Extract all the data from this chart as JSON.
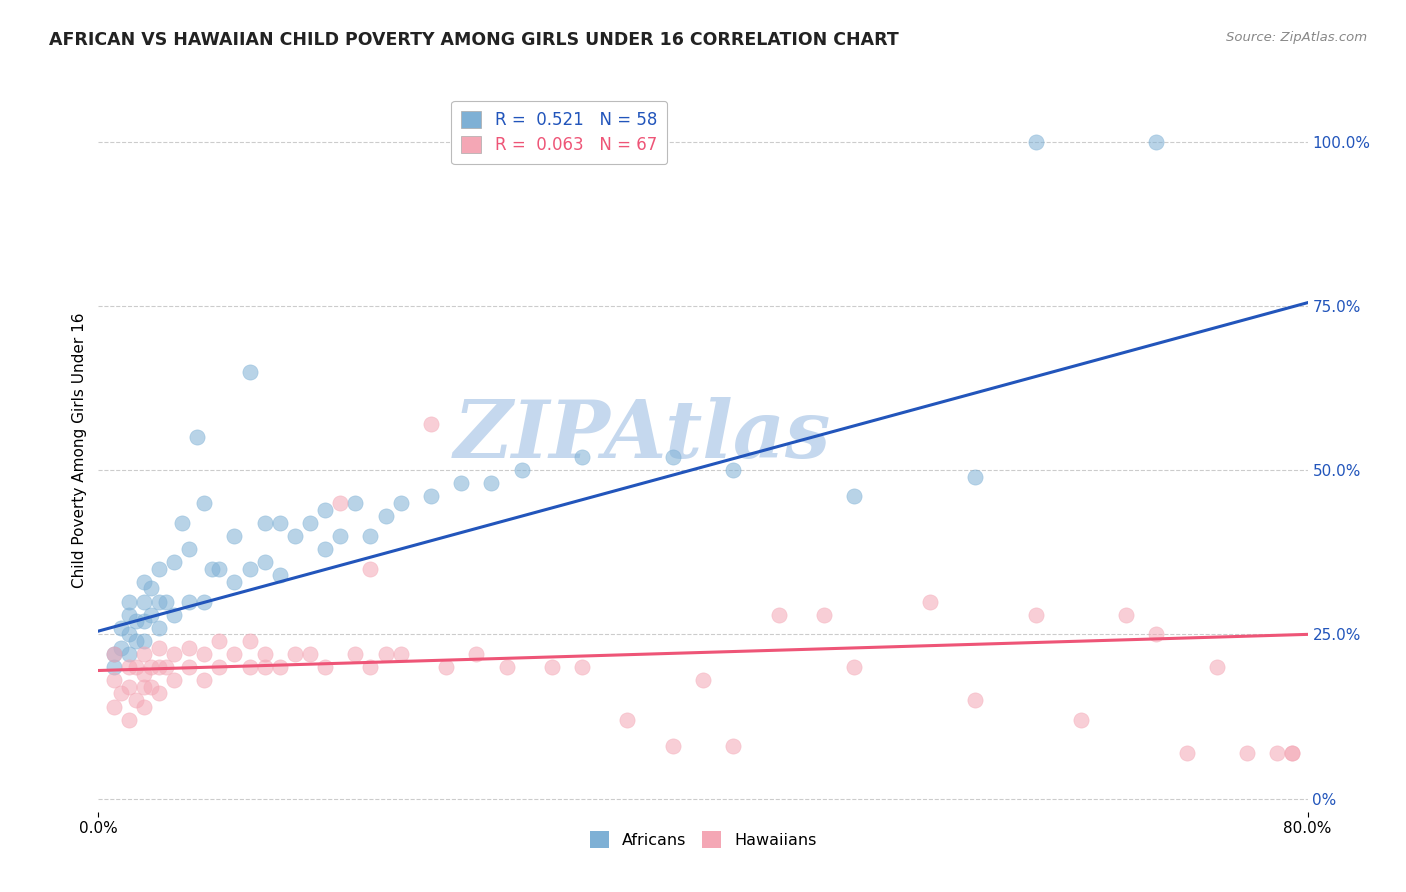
{
  "title": "AFRICAN VS HAWAIIAN CHILD POVERTY AMONG GIRLS UNDER 16 CORRELATION CHART",
  "source": "Source: ZipAtlas.com",
  "ylabel": "Child Poverty Among Girls Under 16",
  "xlim": [
    0.0,
    0.8
  ],
  "ylim": [
    -0.02,
    1.08
  ],
  "yticks_right": [
    0.0,
    0.25,
    0.5,
    0.75,
    1.0
  ],
  "ytick_labels_right": [
    "0%",
    "25.0%",
    "50.0%",
    "75.0%",
    "100.0%"
  ],
  "african_R": 0.521,
  "african_N": 58,
  "hawaiian_R": 0.063,
  "hawaiian_N": 67,
  "blue_color": "#7EB0D5",
  "pink_color": "#F4A7B5",
  "blue_line_color": "#2255BB",
  "pink_line_color": "#EE5577",
  "watermark": "ZIPAtlas",
  "watermark_color": "#C5D8EE",
  "background_color": "#FFFFFF",
  "grid_color": "#CCCCCC",
  "african_line_x0": 0.0,
  "african_line_y0": 0.255,
  "african_line_x1": 0.8,
  "african_line_y1": 0.755,
  "hawaiian_line_x0": 0.0,
  "hawaiian_line_y0": 0.195,
  "hawaiian_line_x1": 0.8,
  "hawaiian_line_y1": 0.25,
  "african_x": [
    0.01,
    0.01,
    0.015,
    0.015,
    0.02,
    0.02,
    0.02,
    0.02,
    0.025,
    0.025,
    0.03,
    0.03,
    0.03,
    0.03,
    0.035,
    0.035,
    0.04,
    0.04,
    0.04,
    0.045,
    0.05,
    0.05,
    0.055,
    0.06,
    0.06,
    0.065,
    0.07,
    0.07,
    0.075,
    0.08,
    0.09,
    0.09,
    0.1,
    0.1,
    0.11,
    0.11,
    0.12,
    0.12,
    0.13,
    0.14,
    0.15,
    0.15,
    0.16,
    0.17,
    0.18,
    0.19,
    0.2,
    0.22,
    0.24,
    0.26,
    0.28,
    0.32,
    0.38,
    0.42,
    0.5,
    0.58,
    0.62,
    0.7
  ],
  "african_y": [
    0.2,
    0.22,
    0.23,
    0.26,
    0.22,
    0.25,
    0.28,
    0.3,
    0.24,
    0.27,
    0.24,
    0.27,
    0.3,
    0.33,
    0.28,
    0.32,
    0.26,
    0.3,
    0.35,
    0.3,
    0.28,
    0.36,
    0.42,
    0.3,
    0.38,
    0.55,
    0.3,
    0.45,
    0.35,
    0.35,
    0.33,
    0.4,
    0.35,
    0.65,
    0.36,
    0.42,
    0.34,
    0.42,
    0.4,
    0.42,
    0.38,
    0.44,
    0.4,
    0.45,
    0.4,
    0.43,
    0.45,
    0.46,
    0.48,
    0.48,
    0.5,
    0.52,
    0.52,
    0.5,
    0.46,
    0.49,
    1.0,
    1.0
  ],
  "hawaiian_x": [
    0.01,
    0.01,
    0.01,
    0.015,
    0.02,
    0.02,
    0.02,
    0.025,
    0.025,
    0.03,
    0.03,
    0.03,
    0.03,
    0.035,
    0.035,
    0.04,
    0.04,
    0.04,
    0.045,
    0.05,
    0.05,
    0.06,
    0.06,
    0.07,
    0.07,
    0.08,
    0.08,
    0.09,
    0.1,
    0.1,
    0.11,
    0.11,
    0.12,
    0.13,
    0.14,
    0.15,
    0.16,
    0.17,
    0.18,
    0.18,
    0.19,
    0.2,
    0.22,
    0.23,
    0.25,
    0.27,
    0.3,
    0.32,
    0.35,
    0.38,
    0.4,
    0.42,
    0.45,
    0.48,
    0.5,
    0.55,
    0.58,
    0.62,
    0.65,
    0.68,
    0.7,
    0.72,
    0.74,
    0.76,
    0.78,
    0.79,
    0.79
  ],
  "hawaiian_y": [
    0.14,
    0.18,
    0.22,
    0.16,
    0.12,
    0.17,
    0.2,
    0.15,
    0.2,
    0.14,
    0.17,
    0.19,
    0.22,
    0.17,
    0.2,
    0.16,
    0.2,
    0.23,
    0.2,
    0.18,
    0.22,
    0.2,
    0.23,
    0.18,
    0.22,
    0.2,
    0.24,
    0.22,
    0.2,
    0.24,
    0.2,
    0.22,
    0.2,
    0.22,
    0.22,
    0.2,
    0.45,
    0.22,
    0.2,
    0.35,
    0.22,
    0.22,
    0.57,
    0.2,
    0.22,
    0.2,
    0.2,
    0.2,
    0.12,
    0.08,
    0.18,
    0.08,
    0.28,
    0.28,
    0.2,
    0.3,
    0.15,
    0.28,
    0.12,
    0.28,
    0.25,
    0.07,
    0.2,
    0.07,
    0.07,
    0.07,
    0.07
  ]
}
